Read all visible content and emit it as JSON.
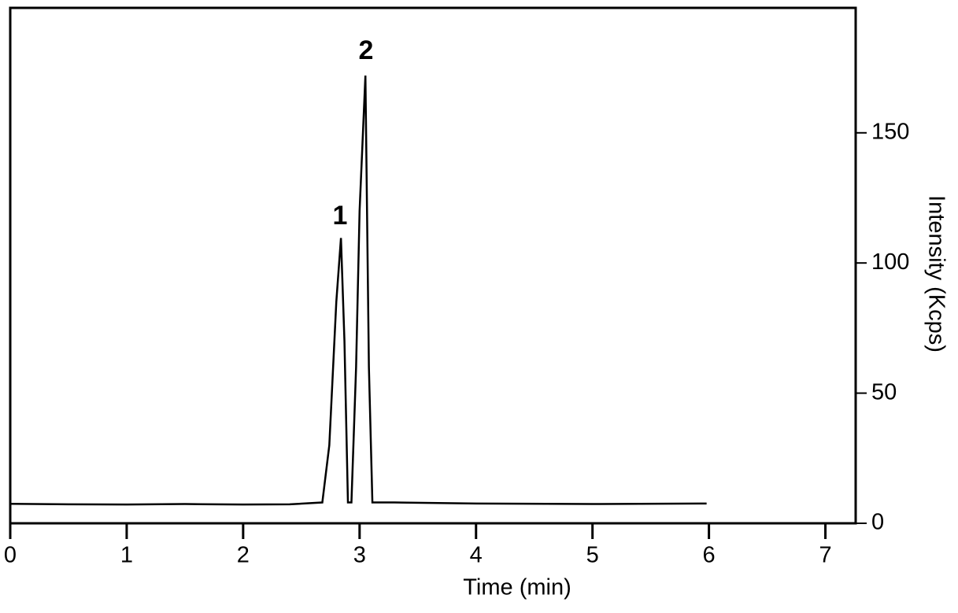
{
  "chart_data": {
    "type": "line",
    "x_label": "Time (min)",
    "y_label": "Intensity (Kcps)",
    "annotations": [
      "1",
      "2"
    ],
    "x": [
      0,
      0.5,
      1,
      1.5,
      2,
      2.4,
      2.68,
      2.74,
      2.8,
      2.84,
      2.87,
      2.9,
      2.93,
      2.97,
      3.0,
      3.05,
      3.08,
      3.11,
      3.3,
      4,
      5,
      5.98
    ],
    "series": [
      {
        "color": "#000000",
        "values": [
          7.5,
          7.3,
          7.2,
          7.4,
          7.2,
          7.3,
          8,
          30,
          85,
          109.6,
          70,
          8,
          8,
          60,
          120,
          172,
          60,
          8,
          8,
          7.6,
          7.4,
          7.6
        ]
      }
    ],
    "xlim": [
      0,
      7.26
    ],
    "xticks": [
      0,
      1,
      2,
      3,
      4,
      5,
      6,
      7
    ],
    "ylim": [
      0,
      198
    ],
    "yticks": [
      0,
      50,
      100,
      150
    ],
    "y_axis_side": "right"
  }
}
